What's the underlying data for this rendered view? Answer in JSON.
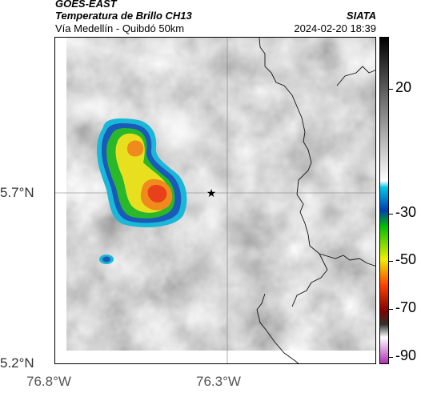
{
  "header": {
    "satellite": "GOES-EAST",
    "product": "Temperatura de Brillo CH13",
    "route": "Vía Medellín - Quibdó 50km",
    "organization": "SIATA",
    "timestamp": "2024-02-20 18:39"
  },
  "map": {
    "lat_ticks": [
      "5.7°N",
      "5.2°N"
    ],
    "lon_ticks": [
      "76.8°W",
      "76.3°W"
    ],
    "marker": "star-marker",
    "cloud_colors": {
      "cold_core": "#e8401a",
      "orange": "#f08a1c",
      "yellow": "#e8e01e",
      "green": "#28b82a",
      "blue": "#1a5ab8",
      "cyan": "#1ab8d8"
    }
  },
  "colorbar": {
    "labels": [
      "20",
      "-30",
      "-50",
      "-70",
      "-90"
    ],
    "gradient_colors": [
      "#000000",
      "#ffffff",
      "#00c8e8",
      "#0040b0",
      "#00c000",
      "#f0f000",
      "#ff4000",
      "#800000",
      "#303030",
      "#ffffff",
      "#b030b0"
    ]
  }
}
